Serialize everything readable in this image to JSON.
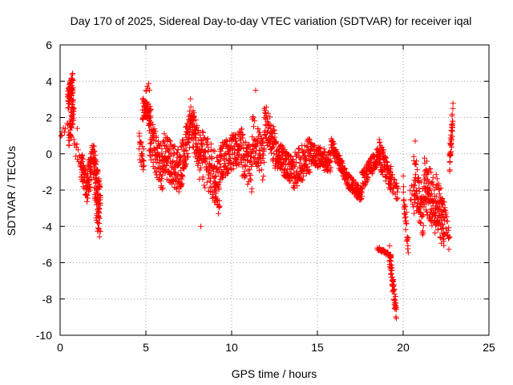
{
  "chart_data": {
    "type": "scatter",
    "title": "Day 170 of 2025, Sidereal Day-to-day VTEC variation (SDTVAR) for receiver iqal",
    "xlabel": "GPS time / hours",
    "ylabel": "SDTVAR / TECUs",
    "xlim": [
      0,
      25
    ],
    "ylim": [
      -10,
      6
    ],
    "xticks": [
      0,
      5,
      10,
      15,
      20,
      25
    ],
    "yticks": [
      -10,
      -8,
      -6,
      -4,
      -2,
      0,
      2,
      4,
      6
    ],
    "grid": true,
    "marker": "plus",
    "color": "#ff0000",
    "segments": [
      {
        "x0": 0.0,
        "x1": 0.45,
        "y": [
          1.0,
          1.6
        ],
        "spread": 0.2,
        "n": 8
      },
      {
        "x0": 0.45,
        "x1": 0.75,
        "y": [
          3.0,
          3.9
        ],
        "spread": 0.6,
        "n": 70
      },
      {
        "x0": 0.5,
        "x1": 0.8,
        "y": [
          1.0,
          2.5
        ],
        "spread": 0.8,
        "n": 50
      },
      {
        "x0": 0.8,
        "x1": 1.3,
        "y": [
          0.5,
          -0.5
        ],
        "spread": 0.5,
        "n": 15
      },
      {
        "x0": 1.2,
        "x1": 1.6,
        "y": [
          -0.5,
          -2.0
        ],
        "spread": 0.8,
        "n": 50
      },
      {
        "x0": 1.6,
        "x1": 2.0,
        "y": [
          -1.5,
          0.0
        ],
        "spread": 1.0,
        "n": 60
      },
      {
        "x0": 2.0,
        "x1": 2.35,
        "y": [
          -1.0,
          -3.0
        ],
        "spread": 1.3,
        "n": 80
      },
      {
        "x0": 2.1,
        "x1": 2.3,
        "y": [
          -3.5,
          -4.3
        ],
        "spread": 0.4,
        "n": 12
      },
      {
        "x0": 4.6,
        "x1": 4.9,
        "y": [
          0.5,
          -0.5
        ],
        "spread": 0.7,
        "n": 25
      },
      {
        "x0": 4.8,
        "x1": 5.3,
        "y": [
          2.5,
          2.0
        ],
        "spread": 0.6,
        "n": 60
      },
      {
        "x0": 5.0,
        "x1": 5.2,
        "y": [
          3.3,
          3.8
        ],
        "spread": 0.3,
        "n": 6
      },
      {
        "x0": 5.2,
        "x1": 6.0,
        "y": [
          1.0,
          -1.0
        ],
        "spread": 1.2,
        "n": 90
      },
      {
        "x0": 6.0,
        "x1": 7.0,
        "y": [
          0.0,
          -1.0
        ],
        "spread": 1.2,
        "n": 120
      },
      {
        "x0": 7.0,
        "x1": 7.6,
        "y": [
          -1.0,
          1.5
        ],
        "spread": 1.2,
        "n": 80
      },
      {
        "x0": 7.6,
        "x1": 8.1,
        "y": [
          2.0,
          0.0
        ],
        "spread": 1.2,
        "n": 70
      },
      {
        "x0": 8.1,
        "x1": 9.3,
        "y": [
          0.0,
          -1.5
        ],
        "spread": 1.5,
        "n": 130
      },
      {
        "x0": 9.0,
        "x1": 9.3,
        "y": [
          -2.5,
          -3.2
        ],
        "spread": 0.4,
        "n": 10
      },
      {
        "x0": 9.3,
        "x1": 10.6,
        "y": [
          -0.5,
          0.5
        ],
        "spread": 1.0,
        "n": 140
      },
      {
        "x0": 10.6,
        "x1": 11.2,
        "y": [
          0.0,
          -1.0
        ],
        "spread": 1.2,
        "n": 60
      },
      {
        "x0": 11.2,
        "x1": 11.9,
        "y": [
          1.0,
          -0.5
        ],
        "spread": 1.2,
        "n": 70
      },
      {
        "x0": 11.9,
        "x1": 12.6,
        "y": [
          2.0,
          0.0
        ],
        "spread": 1.0,
        "n": 80
      },
      {
        "x0": 12.6,
        "x1": 13.6,
        "y": [
          0.0,
          -1.0
        ],
        "spread": 0.8,
        "n": 110
      },
      {
        "x0": 13.6,
        "x1": 14.6,
        "y": [
          -1.0,
          0.0
        ],
        "spread": 1.0,
        "n": 100
      },
      {
        "x0": 14.6,
        "x1": 15.8,
        "y": [
          0.0,
          -0.5
        ],
        "spread": 0.6,
        "n": 120
      },
      {
        "x0": 15.8,
        "x1": 16.8,
        "y": [
          0.5,
          -1.5
        ],
        "spread": 0.4,
        "n": 110
      },
      {
        "x0": 16.8,
        "x1": 17.6,
        "y": [
          -1.5,
          -2.3
        ],
        "spread": 0.4,
        "n": 90
      },
      {
        "x0": 17.6,
        "x1": 18.6,
        "y": [
          -1.5,
          0.0
        ],
        "spread": 0.5,
        "n": 100
      },
      {
        "x0": 18.6,
        "x1": 19.3,
        "y": [
          0.0,
          -1.5
        ],
        "spread": 0.8,
        "n": 80
      },
      {
        "x0": 18.5,
        "x1": 19.3,
        "y": [
          -5.2,
          -5.6
        ],
        "spread": 0.1,
        "n": 40
      },
      {
        "x0": 19.2,
        "x1": 19.6,
        "y": [
          -5.5,
          -8.7
        ],
        "spread": 0.6,
        "n": 60
      },
      {
        "x0": 19.3,
        "x1": 19.7,
        "y": [
          -1.5,
          -2.2
        ],
        "spread": 0.5,
        "n": 25
      },
      {
        "x0": 20.0,
        "x1": 20.3,
        "y": [
          -2.0,
          -5.0
        ],
        "spread": 0.8,
        "n": 30
      },
      {
        "x0": 20.4,
        "x1": 20.7,
        "y": [
          -2.0,
          -3.0
        ],
        "spread": 0.6,
        "n": 10
      },
      {
        "x0": 20.6,
        "x1": 21.2,
        "y": [
          -1.0,
          -3.5
        ],
        "spread": 1.4,
        "n": 70
      },
      {
        "x0": 21.2,
        "x1": 21.9,
        "y": [
          -1.5,
          -3.0
        ],
        "spread": 1.5,
        "n": 100
      },
      {
        "x0": 21.9,
        "x1": 22.4,
        "y": [
          -2.5,
          -4.0
        ],
        "spread": 1.5,
        "n": 80
      },
      {
        "x0": 22.4,
        "x1": 22.7,
        "y": [
          -3.0,
          -4.9
        ],
        "spread": 0.6,
        "n": 20
      },
      {
        "x0": 22.7,
        "x1": 22.9,
        "y": [
          -0.5,
          2.0
        ],
        "spread": 0.8,
        "n": 40
      }
    ],
    "outliers": [
      {
        "x": 11.4,
        "y": 3.5
      },
      {
        "x": 20.7,
        "y": 0.7
      },
      {
        "x": 1.0,
        "y": 1.4
      },
      {
        "x": 0.1,
        "y": 1.2
      },
      {
        "x": 8.2,
        "y": -4.0
      }
    ]
  }
}
